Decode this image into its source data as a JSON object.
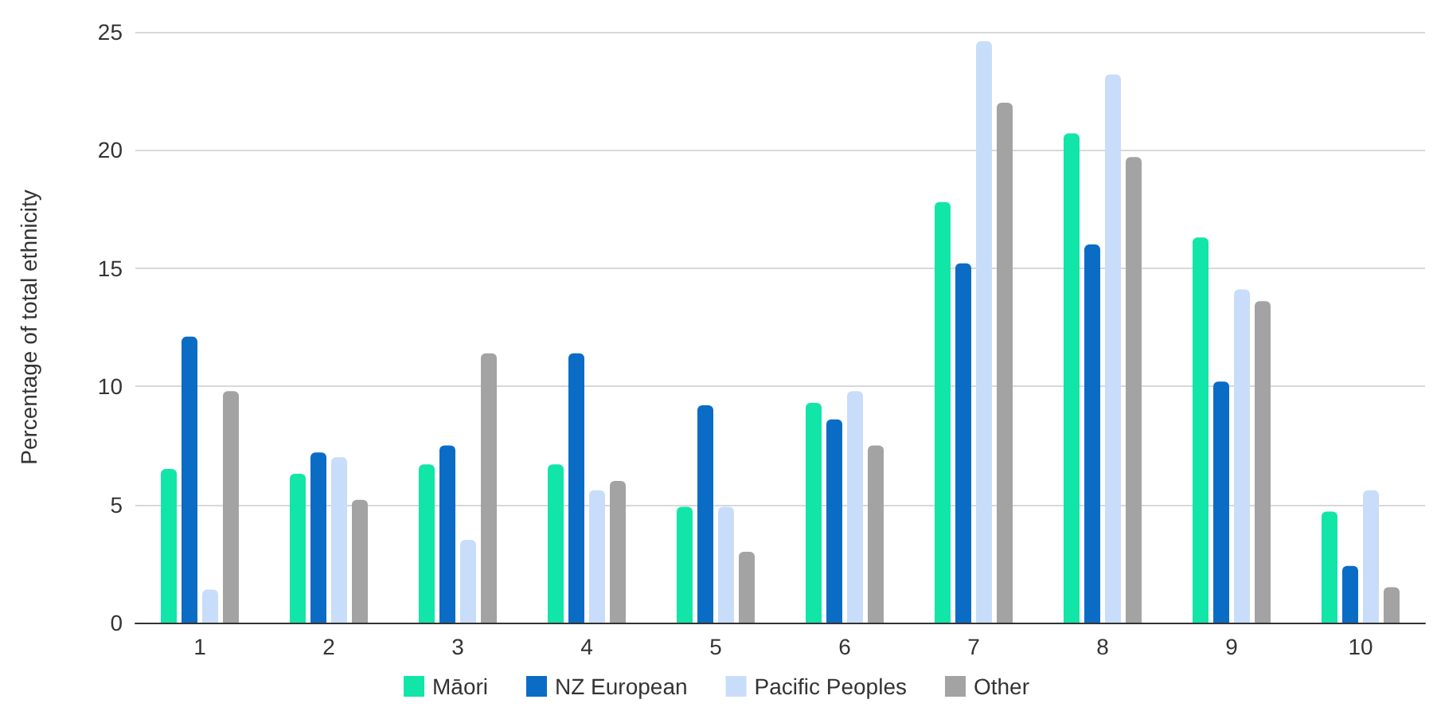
{
  "chart_data": {
    "type": "bar",
    "ylabel": "Percentage of total ethnicity",
    "categories": [
      "1",
      "2",
      "3",
      "4",
      "5",
      "6",
      "7",
      "8",
      "9",
      "10"
    ],
    "series": [
      {
        "name": "Māori",
        "color": "#12e5a8",
        "values": [
          6.5,
          6.3,
          6.7,
          6.7,
          4.9,
          9.3,
          17.8,
          20.7,
          16.3,
          4.7
        ]
      },
      {
        "name": "NZ European",
        "color": "#0b6cc6",
        "values": [
          12.1,
          7.2,
          7.5,
          11.4,
          9.2,
          8.6,
          15.2,
          16.0,
          10.2,
          2.4
        ]
      },
      {
        "name": "Pacific Peoples",
        "color": "#c8ddf9",
        "values": [
          1.4,
          7.0,
          3.5,
          5.6,
          4.9,
          9.8,
          24.6,
          23.2,
          14.1,
          5.6
        ]
      },
      {
        "name": "Other",
        "color": "#a3a3a3",
        "values": [
          9.8,
          5.2,
          11.4,
          6.0,
          3.0,
          7.5,
          22.0,
          19.7,
          13.6,
          1.5
        ]
      }
    ],
    "ylim": [
      0,
      25
    ],
    "yticks": [
      0,
      5,
      10,
      15,
      20,
      25
    ],
    "grid": "y",
    "legend": "bottom"
  }
}
